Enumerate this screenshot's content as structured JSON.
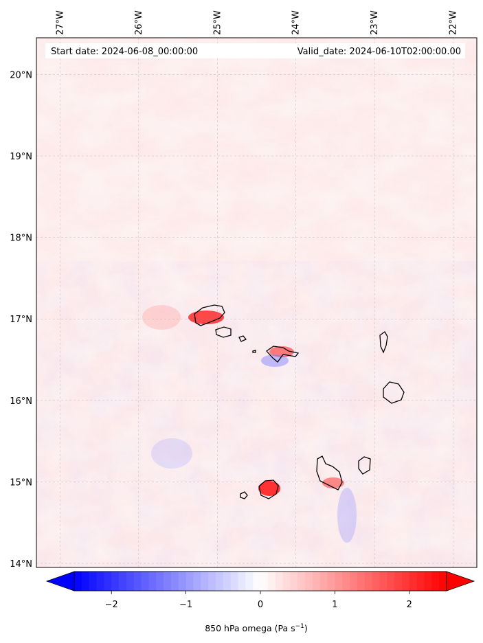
{
  "map": {
    "start_date": "Start date: 2024-06-08_00:00:00",
    "valid_date": "Valid_date: 2024-06-10T02:00:00.00",
    "lon_labels": [
      "27°W",
      "26°W",
      "25°W",
      "24°W",
      "23°W",
      "22°W"
    ],
    "lat_labels": [
      "20°N",
      "19°N",
      "18°N",
      "17°N",
      "16°N",
      "15°N",
      "14°N"
    ],
    "lon_range": [
      -27.3,
      -21.7
    ],
    "lat_range": [
      13.95,
      20.45
    ],
    "gridlines": true,
    "field": "850 hPa omega",
    "islands": [
      "Santo Antão",
      "São Vicente",
      "Santa Luzia",
      "São Nicolau",
      "Sal",
      "Boa Vista",
      "Brava",
      "Fogo",
      "Santiago",
      "Maio"
    ]
  },
  "colorbar": {
    "ticks": [
      "−2",
      "−1",
      "0",
      "1",
      "2"
    ],
    "tick_values": [
      -2,
      -1,
      0,
      1,
      2
    ],
    "range": [
      -2.5,
      2.5
    ],
    "label": "850 hPa omega (Pa s",
    "label_sup": "−1",
    "label_end": ")",
    "colormap": "bwr",
    "colors": {
      "min": "#0000ff",
      "mid": "#ffffff",
      "max": "#ff0000"
    }
  }
}
